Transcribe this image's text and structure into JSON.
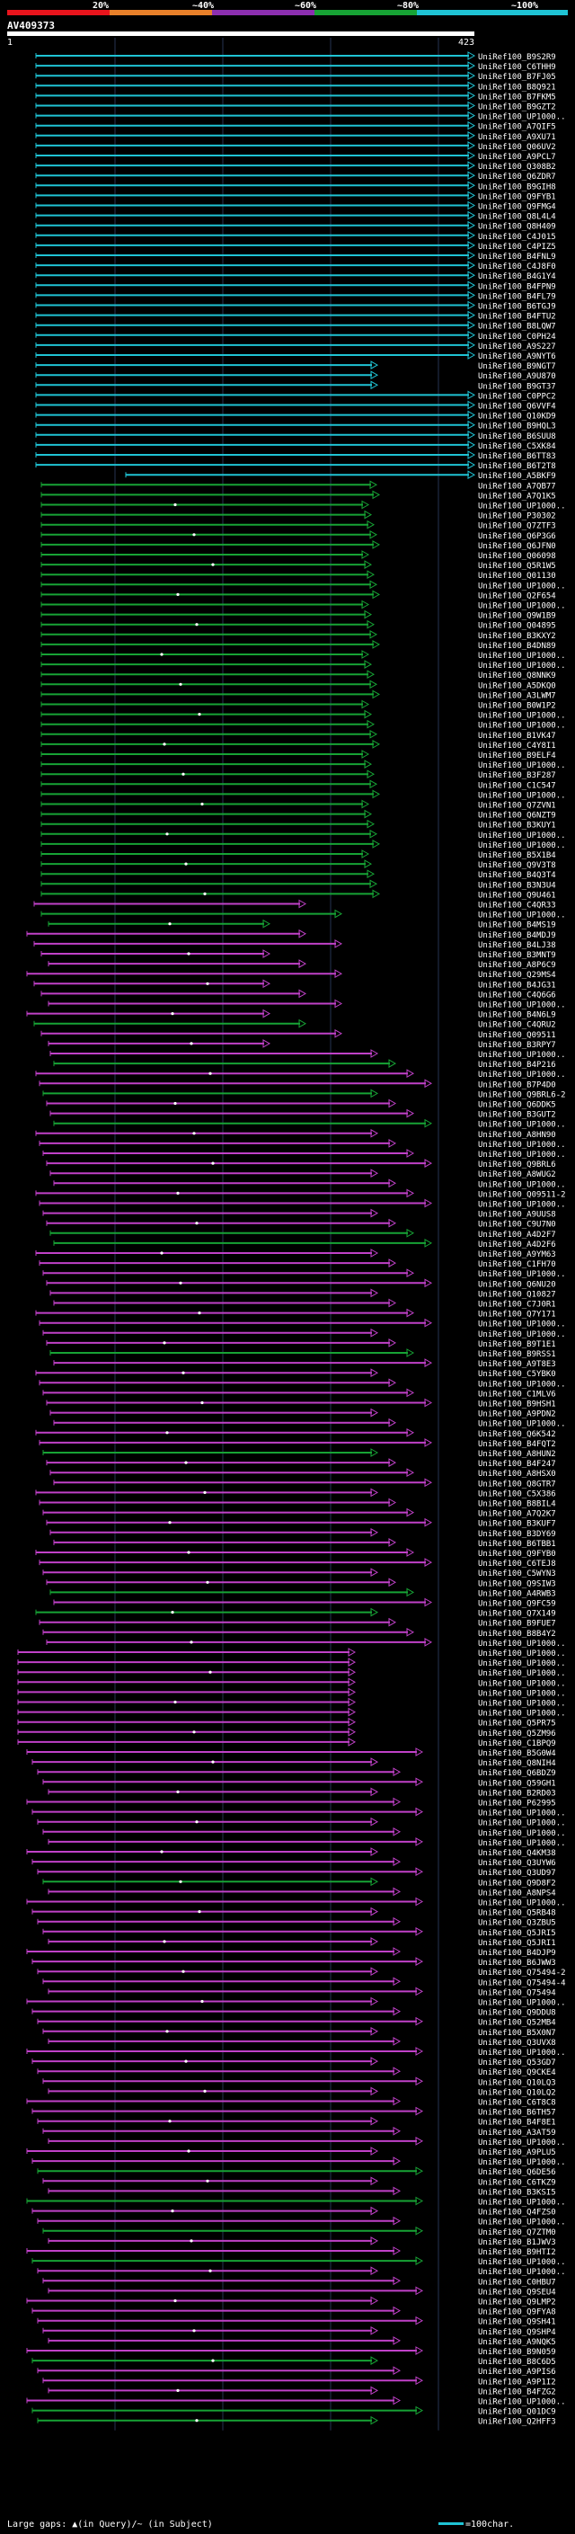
{
  "query": {
    "id": "AV409373",
    "start": "1",
    "end": "423"
  },
  "colorScale": {
    "labels": [
      "20%",
      "~40%",
      "~60%",
      "~80%",
      "~100%"
    ],
    "colors": [
      "#e8141c",
      "#e8802a",
      "#8c2fb0",
      "#17a335",
      "#1fc3d4"
    ]
  },
  "legend": {
    "gaps_text": "Large gaps: ▲(in Query)/~ (in Subject)",
    "scale_text": "=100char."
  },
  "hits": [
    "UniRef100_B9S2R9",
    "UniRef100_C6THH9",
    "UniRef100_B7FJ05",
    "UniRef100_B8Q921",
    "UniRef100_B7FKM5",
    "UniRef100_B9GZT2",
    "UniRef100_UP1000..",
    "UniRef100_A7QIF5",
    "UniRef100_A9XU71",
    "UniRef100_Q06UV2",
    "UniRef100_A9PCL7",
    "UniRef100_Q308B2",
    "UniRef100_Q6ZDR7",
    "UniRef100_B9GIH8",
    "UniRef100_Q9FYB1",
    "UniRef100_Q9FMG4",
    "UniRef100_Q8L4L4",
    "UniRef100_Q8H409",
    "UniRef100_C4J015",
    "UniRef100_C4PIZ5",
    "UniRef100_B4FNL9",
    "UniRef100_C4J8F0",
    "UniRef100_B4G1Y4",
    "UniRef100_B4FPN9",
    "UniRef100_B4FL79",
    "UniRef100_B6TGJ9",
    "UniRef100_B4FTU2",
    "UniRef100_B8LQW7",
    "UniRef100_C0PH24",
    "UniRef100_A9S227",
    "UniRef100_A9NYT6",
    "UniRef100_B9NGT7",
    "UniRef100_A9U870",
    "UniRef100_B9GT37",
    "UniRef100_C0PPC2",
    "UniRef100_Q6VVF4",
    "UniRef100_Q10KD9",
    "UniRef100_B9HQL3",
    "UniRef100_B6SUU8",
    "UniRef100_C5XK84",
    "UniRef100_B6TT83",
    "UniRef100_B6T2T8",
    "UniRef100_A5BKF9",
    "UniRef100_A7QB77",
    "UniRef100_A7Q1K5",
    "UniRef100_UP1000..",
    "UniRef100_P30302",
    "UniRef100_Q7ZTF3",
    "UniRef100_Q6P3G6",
    "UniRef100_Q6JFN0",
    "UniRef100_Q06098",
    "UniRef100_Q5R1W5",
    "UniRef100_Q01130",
    "UniRef100_UP1000..",
    "UniRef100_Q2F654",
    "UniRef100_UP1000..",
    "UniRef100_Q9W1B9",
    "UniRef100_Q04895",
    "UniRef100_B3KXY2",
    "UniRef100_B4DN89",
    "UniRef100_UP1000..",
    "UniRef100_UP1000..",
    "UniRef100_Q8NNK9",
    "UniRef100_A5DKQ0",
    "UniRef100_A3LWM7",
    "UniRef100_B0W1P2",
    "UniRef100_UP1000..",
    "UniRef100_UP1000..",
    "UniRef100_B1VK47",
    "UniRef100_C4Y8I1",
    "UniRef100_B9ELF4",
    "UniRef100_UP1000..",
    "UniRef100_B3F287",
    "UniRef100_C1C547",
    "UniRef100_UP1000..",
    "UniRef100_Q7ZVN1",
    "UniRef100_Q6NZT9",
    "UniRef100_B3KUY1",
    "UniRef100_UP1000..",
    "UniRef100_UP1000..",
    "UniRef100_B5X1B4",
    "UniRef100_Q9V3T8",
    "UniRef100_B4Q3T4",
    "UniRef100_B3N3U4",
    "UniRef100_Q9U461",
    "UniRef100_C4QR33",
    "UniRef100_UP1000..",
    "UniRef100_B4MS19",
    "UniRef100_B4MDJ9",
    "UniRef100_B4LJ38",
    "UniRef100_B3MNT9",
    "UniRef100_A8P6C9",
    "UniRef100_Q29MS4",
    "UniRef100_B4JG31",
    "UniRef100_C4Q6G6",
    "UniRef100_UP1000..",
    "UniRef100_B4N6L9",
    "UniRef100_C4QRU2",
    "UniRef100_Q09511",
    "UniRef100_B3RPY7",
    "UniRef100_UP1000..",
    "UniRef100_B4P216",
    "UniRef100_UP1000..",
    "UniRef100_B7P4D0",
    "UniRef100_Q9BRL6-2",
    "UniRef100_Q6DDK5",
    "UniRef100_B3GUT2",
    "UniRef100_UP1000..",
    "UniRef100_A8HN90",
    "UniRef100_UP1000..",
    "UniRef100_UP1000..",
    "UniRef100_Q9BRL6",
    "UniRef100_A8WUG2",
    "UniRef100_UP1000..",
    "UniRef100_Q09511-2",
    "UniRef100_UP1000..",
    "UniRef100_A9UUS8",
    "UniRef100_C9U7N0",
    "UniRef100_A4D2F7",
    "UniRef100_A4D2F6",
    "UniRef100_A9YM63",
    "UniRef100_C1FH70",
    "UniRef100_UP1000..",
    "UniRef100_Q6NU20",
    "UniRef100_Q10827",
    "UniRef100_C7J0R1",
    "UniRef100_Q7Y171",
    "UniRef100_UP1000..",
    "UniRef100_UP1000..",
    "UniRef100_B9T1E1",
    "UniRef100_B9RSS1",
    "UniRef100_A9T8E3",
    "UniRef100_C5YBK0",
    "UniRef100_UP1000..",
    "UniRef100_C1MLV6",
    "UniRef100_B9HSH1",
    "UniRef100_A9PDN2",
    "UniRef100_UP1000..",
    "UniRef100_Q6K542",
    "UniRef100_B4FQT2",
    "UniRef100_A8HUN2",
    "UniRef100_B4F247",
    "UniRef100_A8HSX0",
    "UniRef100_Q8GTR7",
    "UniRef100_C5X386",
    "UniRef100_B8BIL4",
    "UniRef100_A7Q2K7",
    "UniRef100_B3KUF7",
    "UniRef100_B3DY69",
    "UniRef100_B6TBB1",
    "UniRef100_Q9FYB0",
    "UniRef100_C6TEJ8",
    "UniRef100_C5WYN3",
    "UniRef100_Q9SIW3",
    "UniRef100_A4RWB3",
    "UniRef100_Q9FC59",
    "UniRef100_Q7X149",
    "UniRef100_B9FUE7",
    "UniRef100_B8B4Y2",
    "UniRef100_UP1000..",
    "UniRef100_UP1000..",
    "UniRef100_UP1000..",
    "UniRef100_UP1000..",
    "UniRef100_UP1000..",
    "UniRef100_UP1000..",
    "UniRef100_UP1000..",
    "UniRef100_UP1000..",
    "UniRef100_Q5PR75",
    "UniRef100_Q5ZM96",
    "UniRef100_C1BPQ9",
    "UniRef100_B5G0W4",
    "UniRef100_Q8NIH4",
    "UniRef100_Q6BDZ9",
    "UniRef100_Q59GH1",
    "UniRef100_B2RD03",
    "UniRef100_P62995",
    "UniRef100_UP1000..",
    "UniRef100_UP1000..",
    "UniRef100_UP1000..",
    "UniRef100_UP1000..",
    "UniRef100_Q4KM38",
    "UniRef100_Q3UYW6",
    "UniRef100_Q3UD97",
    "UniRef100_Q9D8F2",
    "UniRef100_A8NPS4",
    "UniRef100_UP1000..",
    "UniRef100_Q5RB48",
    "UniRef100_Q3ZBU5",
    "UniRef100_Q5JRI5",
    "UniRef100_Q5JRI1",
    "UniRef100_B4DJP9",
    "UniRef100_B6JWW3",
    "UniRef100_Q75494-2",
    "UniRef100_Q75494-4",
    "UniRef100_Q75494",
    "UniRef100_UP1000..",
    "UniRef100_Q9DDU8",
    "UniRef100_Q52MB4",
    "UniRef100_B5X0N7",
    "UniRef100_Q3UVX8",
    "UniRef100_UP1000..",
    "UniRef100_Q53GD7",
    "UniRef100_Q9CKE4",
    "UniRef100_Q10LQ3",
    "UniRef100_Q10LQ2",
    "UniRef100_C6T8C8",
    "UniRef100_B6TH57",
    "UniRef100_B4F8E1",
    "UniRef100_A3AT59",
    "UniRef100_UP1000..",
    "UniRef100_A9PLU5",
    "UniRef100_UP1000..",
    "UniRef100_Q6DE56",
    "UniRef100_C6TKZ9",
    "UniRef100_B3KSI5",
    "UniRef100_UP1000..",
    "UniRef100_Q4FZS0",
    "UniRef100_UP1000..",
    "UniRef100_Q7ZTM0",
    "UniRef100_B1JWV3",
    "UniRef100_B9HTI2",
    "UniRef100_UP1000..",
    "UniRef100_UP1000..",
    "UniRef100_C0HBU7",
    "UniRef100_Q9SEU4",
    "UniRef100_Q9LMP2",
    "UniRef100_Q9FYA8",
    "UniRef100_Q9SH41",
    "UniRef100_Q9SHP4",
    "UniRef100_A9NQK5",
    "UniRef100_B9N059",
    "UniRef100_B8C6D5",
    "UniRef100_A9PIS6",
    "UniRef100_A9P1I2",
    "UniRef100_B4FZG2",
    "UniRef100_UP1000..",
    "UniRef100_Q01DC9",
    "UniRef100_Q2HFF3"
  ]
}
